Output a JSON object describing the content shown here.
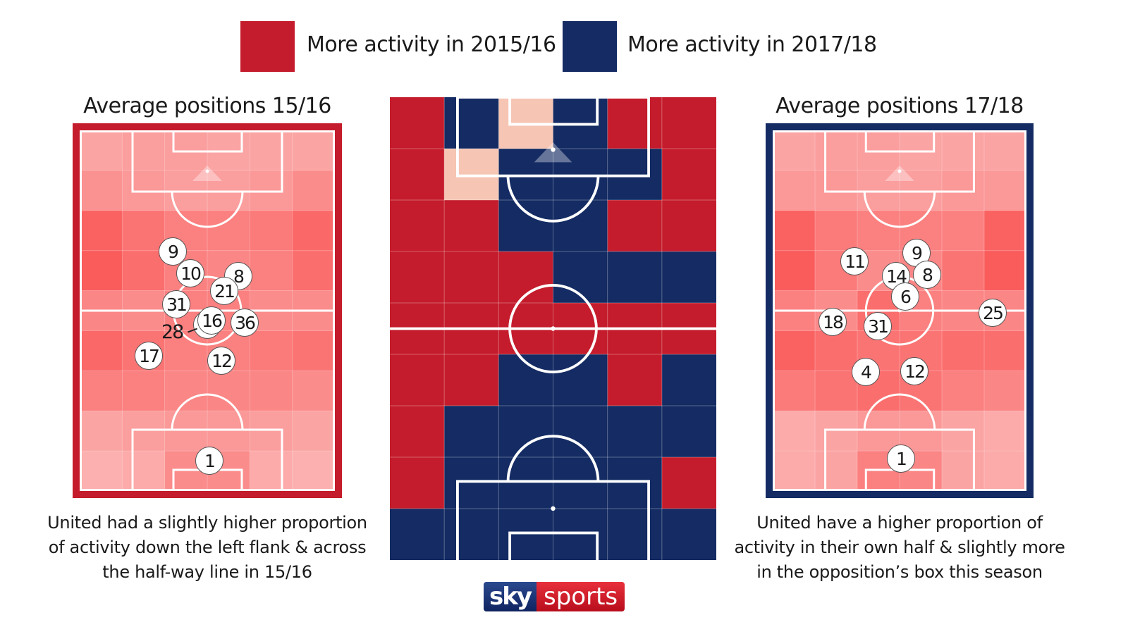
{
  "colors": {
    "red": "#c41c2c",
    "blue": "#142b63",
    "peach": "#f6c5b4",
    "heat": "#fa5050"
  },
  "legend": [
    {
      "label": "More activity in 2015/16",
      "color": "#c41c2c"
    },
    {
      "label": "More activity in 2017/18",
      "color": "#142b63"
    }
  ],
  "left": {
    "title": "Average positions 15/16",
    "caption": [
      "United had a slightly higher proportion",
      "of activity down the left flank & across",
      "the half-way line in 15/16"
    ],
    "heat": [
      [
        0.3,
        0.35,
        0.35,
        0.3,
        0.3,
        0.3
      ],
      [
        0.45,
        0.4,
        0.35,
        0.35,
        0.4,
        0.5
      ],
      [
        0.85,
        0.7,
        0.6,
        0.6,
        0.65,
        0.8
      ],
      [
        0.9,
        0.75,
        0.6,
        0.55,
        0.6,
        0.75
      ],
      [
        0.55,
        0.5,
        0.6,
        0.6,
        0.5,
        0.5
      ],
      [
        0.8,
        0.7,
        0.6,
        0.6,
        0.65,
        0.7
      ],
      [
        0.6,
        0.6,
        0.55,
        0.55,
        0.55,
        0.5
      ],
      [
        0.3,
        0.35,
        0.4,
        0.4,
        0.35,
        0.3
      ],
      [
        0.2,
        0.25,
        0.5,
        0.5,
        0.25,
        0.2
      ]
    ],
    "players": [
      "9",
      "10",
      "8",
      "21",
      "31",
      "16",
      "36",
      "17",
      "12",
      "1"
    ],
    "label_28": "28"
  },
  "right": {
    "title": "Average positions 17/18",
    "caption": [
      "United have a higher proportion of",
      "activity in their own half & slightly more",
      "in the opposition’s box this season"
    ],
    "heat": [
      [
        0.3,
        0.35,
        0.35,
        0.3,
        0.3,
        0.3
      ],
      [
        0.4,
        0.4,
        0.35,
        0.35,
        0.4,
        0.4
      ],
      [
        0.85,
        0.65,
        0.6,
        0.6,
        0.6,
        0.85
      ],
      [
        0.9,
        0.65,
        0.5,
        0.55,
        0.7,
        0.9
      ],
      [
        0.6,
        0.5,
        0.75,
        0.6,
        0.55,
        0.55
      ],
      [
        0.85,
        0.75,
        0.7,
        0.7,
        0.75,
        0.75
      ],
      [
        0.65,
        0.7,
        0.75,
        0.7,
        0.6,
        0.55
      ],
      [
        0.25,
        0.3,
        0.4,
        0.4,
        0.3,
        0.25
      ],
      [
        0.25,
        0.3,
        0.6,
        0.55,
        0.3,
        0.25
      ]
    ],
    "players": [
      "11",
      "9",
      "14",
      "8",
      "6",
      "18",
      "31",
      "25",
      "4",
      "12",
      "1"
    ]
  },
  "difference_grid": [
    [
      "red",
      "blue",
      "peach",
      "blue",
      "red",
      "red"
    ],
    [
      "red",
      "peach",
      "blue",
      "blue",
      "blue",
      "red"
    ],
    [
      "red",
      "red",
      "blue",
      "blue",
      "red",
      "red"
    ],
    [
      "red",
      "red",
      "red",
      "blue",
      "blue",
      "blue"
    ],
    [
      "red",
      "red",
      "red",
      "red",
      "red",
      "red"
    ],
    [
      "red",
      "red",
      "blue",
      "blue",
      "red",
      "blue"
    ],
    [
      "red",
      "blue",
      "blue",
      "blue",
      "blue",
      "blue"
    ],
    [
      "red",
      "blue",
      "blue",
      "blue",
      "blue",
      "red"
    ],
    [
      "blue",
      "blue",
      "blue",
      "blue",
      "blue",
      "blue"
    ]
  ],
  "logo": {
    "part1": "sky",
    "part2": "sports"
  }
}
